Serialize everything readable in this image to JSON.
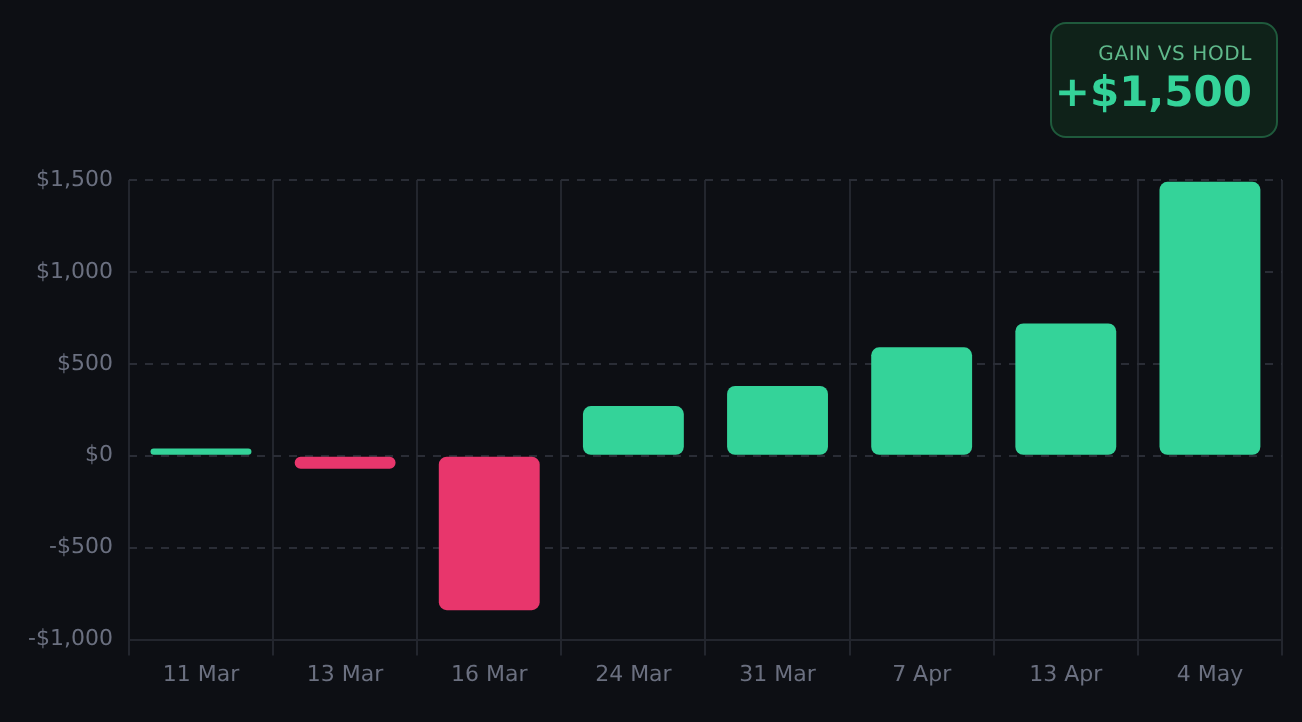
{
  "chart_data": {
    "type": "bar",
    "categories": [
      "11 Mar",
      "13 Mar",
      "16 Mar",
      "24 Mar",
      "31 Mar",
      "7 Apr",
      "13 Apr",
      "4 May"
    ],
    "values": [
      40,
      -70,
      -840,
      270,
      380,
      590,
      720,
      1490
    ],
    "colors": [
      "#34d399",
      "#e8366c",
      "#e8366c",
      "#34d399",
      "#34d399",
      "#34d399",
      "#34d399",
      "#34d399"
    ],
    "ylim": [
      -1000,
      1500
    ],
    "yticks": [
      {
        "value": -1000,
        "label": "-$1,000"
      },
      {
        "value": -500,
        "label": "-$500"
      },
      {
        "value": 0,
        "label": "$0"
      },
      {
        "value": 500,
        "label": "$500"
      },
      {
        "value": 1000,
        "label": "$1,000"
      },
      {
        "value": 1500,
        "label": "$1,500"
      }
    ],
    "grid": true,
    "annotations": [
      "GAIN VS HODL",
      "+$1,500"
    ]
  }
}
